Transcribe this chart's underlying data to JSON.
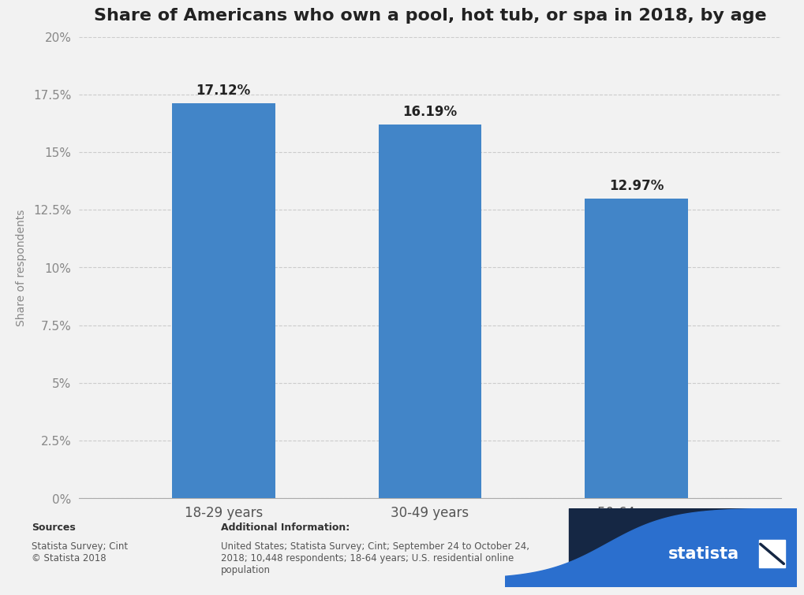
{
  "title": "Share of Americans who own a pool, hot tub, or spa in 2018, by age",
  "categories": [
    "18-29 years",
    "30-49 years",
    "50-64 years"
  ],
  "values": [
    17.12,
    16.19,
    12.97
  ],
  "labels": [
    "17.12%",
    "16.19%",
    "12.97%"
  ],
  "bar_color": "#4285c8",
  "background_color": "#f2f2f2",
  "plot_bg_color": "#f2f2f2",
  "ylabel": "Share of respondents",
  "yticks": [
    0,
    2.5,
    5,
    7.5,
    10,
    12.5,
    15,
    17.5,
    20
  ],
  "ytick_labels": [
    "0%",
    "2.5%",
    "5%",
    "7.5%",
    "10%",
    "12.5%",
    "15%",
    "17.5%",
    "20%"
  ],
  "ylim": [
    0,
    20
  ],
  "title_fontsize": 16,
  "axis_label_fontsize": 10,
  "tick_fontsize": 11,
  "bar_label_fontsize": 12,
  "footer_bg_color": "#e8e8e8",
  "sources_bold": "Sources",
  "sources_text": "Statista Survey; Cint\n© Statista 2018",
  "additional_bold": "Additional Information:",
  "additional_text": "United States; Statista Survey; Cint; September 24 to October 24,\n2018; 10,448 respondents; 18-64 years; U.S. residential online\npopulation",
  "statista_dark": "#152744",
  "statista_blue": "#2b6fce",
  "grid_color": "#cccccc",
  "grid_style": "--"
}
